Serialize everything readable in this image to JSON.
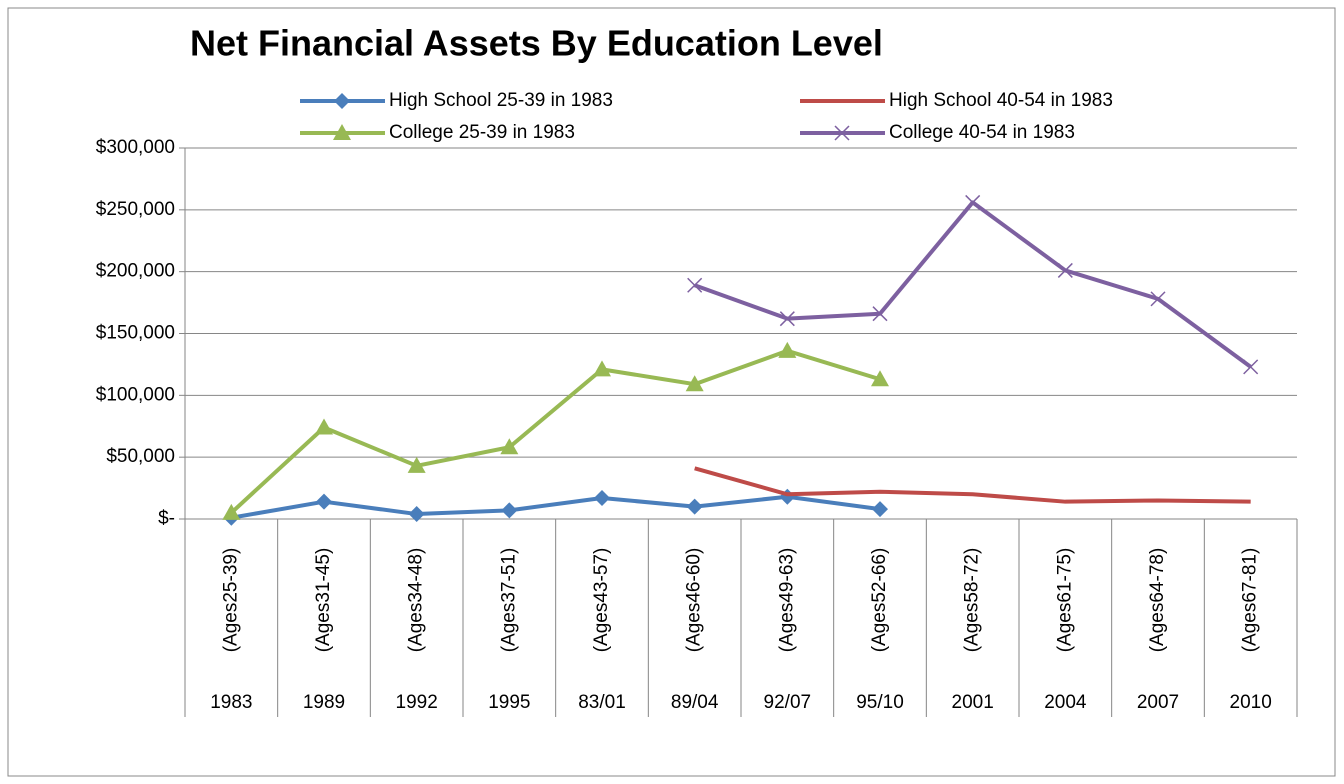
{
  "chart_data": {
    "type": "line",
    "title": "Net Financial Assets By Education Level",
    "categories": [
      "1983",
      "1989",
      "1992",
      "1995",
      "83/01",
      "89/04",
      "92/07",
      "95/10",
      "2001",
      "2004",
      "2007",
      "2010"
    ],
    "category_ages": [
      "(Ages25-39)",
      "(Ages31-45)",
      "(Ages34-48)",
      "(Ages37-51)",
      "(Ages43-57)",
      "(Ages46-60)",
      "(Ages49-63)",
      "(Ages52-66)",
      "(Ages58-72)",
      "(Ages61-75)",
      "(Ages64-78)",
      "(Ages67-81)"
    ],
    "series": [
      {
        "name": "High School 25-39 in 1983",
        "color": "#4a7ebb",
        "marker": "diamond",
        "values": [
          1000,
          14000,
          4000,
          7000,
          17000,
          10000,
          18000,
          8000,
          null,
          null,
          null,
          null
        ]
      },
      {
        "name": "High School 40-54 in 1983",
        "color": "#be4b48",
        "marker": "none",
        "values": [
          null,
          null,
          null,
          null,
          null,
          41000,
          20000,
          22000,
          20000,
          14000,
          15000,
          14000
        ]
      },
      {
        "name": "College 25-39 in 1983",
        "color": "#98b954",
        "marker": "triangle",
        "values": [
          5000,
          74000,
          43000,
          58000,
          121000,
          109000,
          136000,
          113000,
          null,
          null,
          null,
          null
        ]
      },
      {
        "name": "College 40-54 in 1983",
        "color": "#7d60a0",
        "marker": "x",
        "values": [
          null,
          null,
          null,
          null,
          null,
          189000,
          162000,
          166000,
          256000,
          201000,
          178000,
          123000
        ]
      }
    ],
    "ylim": [
      0,
      300000
    ],
    "yticks": [
      {
        "value": 0,
        "label": "$-"
      },
      {
        "value": 50000,
        "label": "$50,000"
      },
      {
        "value": 100000,
        "label": "$100,000"
      },
      {
        "value": 150000,
        "label": "$150,000"
      },
      {
        "value": 200000,
        "label": "$200,000"
      },
      {
        "value": 250000,
        "label": "$250,000"
      },
      {
        "value": 300000,
        "label": "$300,000"
      }
    ],
    "grid": true
  }
}
